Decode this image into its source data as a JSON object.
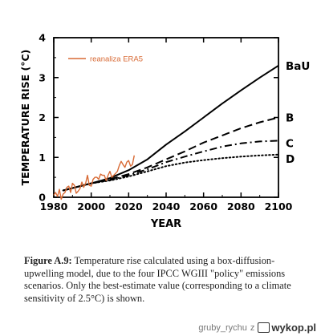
{
  "chart_data": {
    "type": "line",
    "xlabel": "YEAR",
    "ylabel": "TEMPERATURE RISE (°C)",
    "xlim": [
      1980,
      2100
    ],
    "ylim": [
      0,
      4
    ],
    "x_ticks": [
      "1980",
      "2000",
      "2020",
      "2040",
      "2060",
      "2080",
      "2100"
    ],
    "y_ticks": [
      "0",
      "1",
      "2",
      "3",
      "4"
    ],
    "series": [
      {
        "name": "BaU",
        "line_style": "solid",
        "color": "#000000",
        "x": [
          1985,
          2000,
          2010,
          2020,
          2030,
          2040,
          2050,
          2060,
          2070,
          2080,
          2090,
          2100
        ],
        "y": [
          0.17,
          0.35,
          0.48,
          0.68,
          0.95,
          1.32,
          1.65,
          2.0,
          2.35,
          2.68,
          3.0,
          3.3
        ]
      },
      {
        "name": "B",
        "line_style": "dashed",
        "color": "#000000",
        "x": [
          1985,
          2000,
          2010,
          2020,
          2030,
          2040,
          2050,
          2060,
          2070,
          2080,
          2090,
          2100
        ],
        "y": [
          0.17,
          0.35,
          0.45,
          0.58,
          0.75,
          0.95,
          1.15,
          1.37,
          1.55,
          1.73,
          1.88,
          2.0
        ]
      },
      {
        "name": "C",
        "line_style": "dash-dot",
        "color": "#000000",
        "x": [
          1985,
          2000,
          2010,
          2020,
          2030,
          2040,
          2050,
          2060,
          2070,
          2080,
          2090,
          2100
        ],
        "y": [
          0.17,
          0.35,
          0.43,
          0.55,
          0.7,
          0.88,
          1.02,
          1.15,
          1.27,
          1.35,
          1.4,
          1.42
        ]
      },
      {
        "name": "D",
        "line_style": "dotted",
        "color": "#000000",
        "x": [
          1985,
          2000,
          2010,
          2020,
          2030,
          2040,
          2050,
          2060,
          2070,
          2080,
          2090,
          2100
        ],
        "y": [
          0.17,
          0.35,
          0.42,
          0.52,
          0.65,
          0.78,
          0.87,
          0.93,
          0.98,
          1.02,
          1.05,
          1.07
        ]
      },
      {
        "name": "reanaliza ERA5",
        "line_style": "solid",
        "color": "#d86a35",
        "x": [
          1980,
          1981,
          1982,
          1983,
          1984,
          1985,
          1986,
          1987,
          1988,
          1989,
          1990,
          1991,
          1992,
          1993,
          1994,
          1995,
          1996,
          1997,
          1998,
          1999,
          2000,
          2001,
          2002,
          2003,
          2004,
          2005,
          2006,
          2007,
          2008,
          2009,
          2010,
          2011,
          2012,
          2013,
          2014,
          2015,
          2016,
          2017,
          2018,
          2019,
          2020,
          2021,
          2022,
          2023
        ],
        "y": [
          0.05,
          0.12,
          0.02,
          0.2,
          -0.05,
          0.08,
          0.12,
          0.25,
          0.28,
          0.12,
          0.35,
          0.3,
          0.1,
          0.15,
          0.22,
          0.38,
          0.25,
          0.35,
          0.55,
          0.3,
          0.28,
          0.45,
          0.5,
          0.5,
          0.45,
          0.58,
          0.55,
          0.55,
          0.42,
          0.55,
          0.65,
          0.5,
          0.55,
          0.6,
          0.65,
          0.8,
          0.9,
          0.82,
          0.75,
          0.88,
          0.92,
          0.78,
          0.82,
          1.05
        ]
      }
    ],
    "legend": {
      "entries": [
        "reanaliza ERA5"
      ],
      "placement": "top-left"
    },
    "series_labels": [
      "BaU",
      "B",
      "C",
      "D"
    ],
    "grid": false
  },
  "caption": {
    "label": "Figure A.9:",
    "text": "Temperature rise calculated using a box-diffusion-upwelling model, due to the four IPCC WGIII \"policy\" emissions scenarios.  Only the best-estimate value (corresponding to a climate sensitivity of 2.5°C) is shown."
  },
  "watermark": {
    "user": "gruby_rychu",
    "connector": "z",
    "site": "wykop.pl",
    "icon": "wykop-logo-icon"
  }
}
